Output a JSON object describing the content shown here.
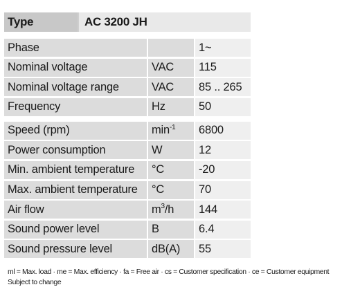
{
  "type_row": {
    "label": "Type",
    "value": "AC 3200 JH"
  },
  "electrical": [
    {
      "param": "Phase",
      "unit": "",
      "value": "1~"
    },
    {
      "param": "Nominal voltage",
      "unit": "VAC",
      "value": "115"
    },
    {
      "param": "Nominal voltage range",
      "unit": "VAC",
      "value": "85 .. 265"
    },
    {
      "param": "Frequency",
      "unit": "Hz",
      "value": "50"
    }
  ],
  "performance": [
    {
      "param": "Speed (rpm)",
      "unit_base": "min",
      "unit_sup": "-1",
      "value": "6800"
    },
    {
      "param": "Power consumption",
      "unit_base": "W",
      "unit_sup": "",
      "value": "12"
    },
    {
      "param": "Min. ambient temperature",
      "unit_base": "°C",
      "unit_sup": "",
      "value": "-20"
    },
    {
      "param": "Max. ambient temperature",
      "unit_base": "°C",
      "unit_sup": "",
      "value": "70"
    },
    {
      "param": "Air flow",
      "unit_base": "m",
      "unit_sup": "3",
      "unit_tail": "/h",
      "value": "144"
    },
    {
      "param": "Sound power level",
      "unit_base": "B",
      "unit_sup": "",
      "value": "6.4"
    },
    {
      "param": "Sound pressure level",
      "unit_base": "dB(A)",
      "unit_sup": "",
      "value": "55"
    }
  ],
  "footer": {
    "legend": "ml = Max. load · me = Max. efficiency · fa = Free air · cs = Customer specification · ce = Customer equipment",
    "note": "Subject to change"
  }
}
